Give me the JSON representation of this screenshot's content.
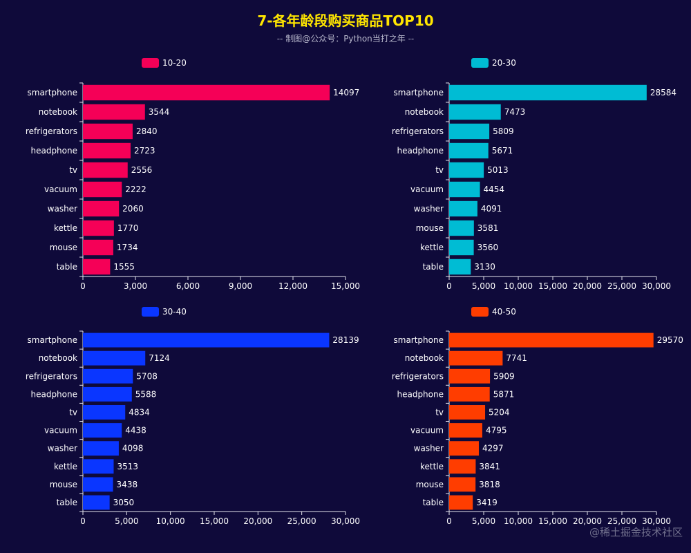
{
  "title": "7-各年龄段购买商品TOP10",
  "subtitle": "-- 制图@公众号：Python当打之年 --",
  "watermark": "@稀土掘金技术社区",
  "chart_data": [
    {
      "type": "bar",
      "orientation": "horizontal",
      "series": [
        {
          "name": "10-20",
          "color": "#f50057",
          "values": [
            14097,
            3544,
            2840,
            2723,
            2556,
            2222,
            2060,
            1770,
            1734,
            1555
          ]
        }
      ],
      "categories": [
        "smartphone",
        "notebook",
        "refrigerators",
        "headphone",
        "tv",
        "vacuum",
        "washer",
        "kettle",
        "mouse",
        "table"
      ],
      "xlim": [
        0,
        15000
      ],
      "xticks": [
        0,
        3000,
        6000,
        9000,
        12000,
        15000
      ],
      "xtick_labels": [
        "0",
        "3,000",
        "6,000",
        "9,000",
        "12,000",
        "15,000"
      ],
      "legend": "top"
    },
    {
      "type": "bar",
      "orientation": "horizontal",
      "series": [
        {
          "name": "20-30",
          "color": "#00bcd4",
          "values": [
            28584,
            7473,
            5809,
            5671,
            5013,
            4454,
            4091,
            3581,
            3560,
            3130
          ]
        }
      ],
      "categories": [
        "smartphone",
        "notebook",
        "refrigerators",
        "headphone",
        "tv",
        "vacuum",
        "washer",
        "mouse",
        "kettle",
        "table"
      ],
      "xlim": [
        0,
        30000
      ],
      "xticks": [
        0,
        5000,
        10000,
        15000,
        20000,
        25000,
        30000
      ],
      "xtick_labels": [
        "0",
        "5,000",
        "10,000",
        "15,000",
        "20,000",
        "25,000",
        "30,000"
      ],
      "legend": "top"
    },
    {
      "type": "bar",
      "orientation": "horizontal",
      "series": [
        {
          "name": "30-40",
          "color": "#0a36ff",
          "values": [
            28139,
            7124,
            5708,
            5588,
            4834,
            4438,
            4098,
            3513,
            3438,
            3050
          ]
        }
      ],
      "categories": [
        "smartphone",
        "notebook",
        "refrigerators",
        "headphone",
        "tv",
        "vacuum",
        "washer",
        "kettle",
        "mouse",
        "table"
      ],
      "xlim": [
        0,
        30000
      ],
      "xticks": [
        0,
        5000,
        10000,
        15000,
        20000,
        25000,
        30000
      ],
      "xtick_labels": [
        "0",
        "5,000",
        "10,000",
        "15,000",
        "20,000",
        "25,000",
        "30,000"
      ],
      "legend": "top"
    },
    {
      "type": "bar",
      "orientation": "horizontal",
      "series": [
        {
          "name": "40-50",
          "color": "#ff3d00",
          "values": [
            29570,
            7741,
            5909,
            5871,
            5204,
            4795,
            4297,
            3841,
            3818,
            3419
          ]
        }
      ],
      "categories": [
        "smartphone",
        "notebook",
        "refrigerators",
        "headphone",
        "tv",
        "vacuum",
        "washer",
        "kettle",
        "mouse",
        "table"
      ],
      "xlim": [
        0,
        30000
      ],
      "xticks": [
        0,
        5000,
        10000,
        15000,
        20000,
        25000,
        30000
      ],
      "xtick_labels": [
        "0",
        "5,000",
        "10,000",
        "15,000",
        "20,000",
        "25,000",
        "30,000"
      ],
      "legend": "top"
    }
  ]
}
